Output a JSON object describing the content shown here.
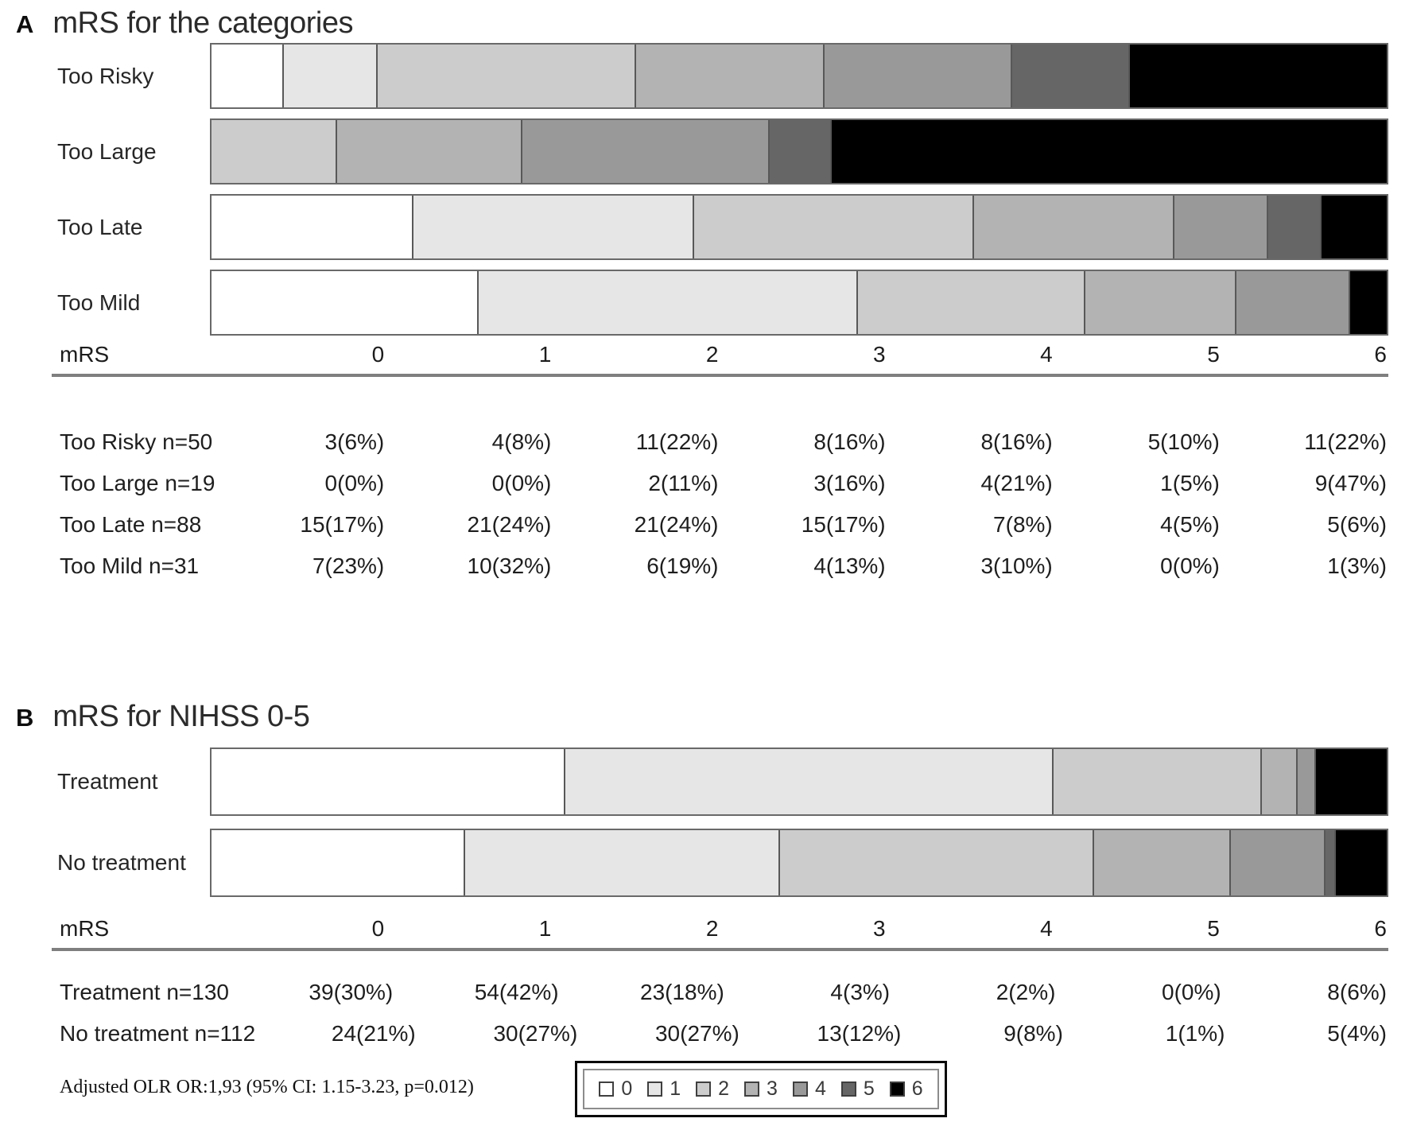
{
  "palette": [
    "#ffffff",
    "#e6e6e6",
    "#cccccc",
    "#b3b3b3",
    "#999999",
    "#666666",
    "#000000"
  ],
  "legend": {
    "labels": [
      "0",
      "1",
      "2",
      "3",
      "4",
      "5",
      "6"
    ]
  },
  "chart_data": [
    {
      "type": "stacked-bar-horizontal",
      "panel_label": "A",
      "title": "mRS for the categories",
      "xlabel": "mRS",
      "stack_labels": [
        "0",
        "1",
        "2",
        "3",
        "4",
        "5",
        "6"
      ],
      "legend_position": "bottom",
      "series": [
        {
          "name": "Too Risky",
          "table_label": "Too Risky n=50",
          "n": 50,
          "counts": [
            3,
            4,
            11,
            8,
            8,
            5,
            11
          ],
          "value_labels": [
            "3(6%)",
            "4(8%)",
            "11(22%)",
            "8(16%)",
            "8(16%)",
            "5(10%)",
            "11(22%)"
          ]
        },
        {
          "name": "Too Large",
          "table_label": "Too Large n=19",
          "n": 19,
          "counts": [
            0,
            0,
            2,
            3,
            4,
            1,
            9
          ],
          "value_labels": [
            "0(0%)",
            "0(0%)",
            "2(11%)",
            "3(16%)",
            "4(21%)",
            "1(5%)",
            "9(47%)"
          ]
        },
        {
          "name": "Too Late",
          "table_label": "Too Late n=88",
          "n": 88,
          "counts": [
            15,
            21,
            21,
            15,
            7,
            4,
            5
          ],
          "value_labels": [
            "15(17%)",
            "21(24%)",
            "21(24%)",
            "15(17%)",
            "7(8%)",
            "4(5%)",
            "5(6%)"
          ]
        },
        {
          "name": "Too Mild",
          "table_label": "Too Mild n=31",
          "n": 31,
          "counts": [
            7,
            10,
            6,
            4,
            3,
            0,
            1
          ],
          "value_labels": [
            "7(23%)",
            "10(32%)",
            "6(19%)",
            "4(13%)",
            "3(10%)",
            "0(0%)",
            "1(3%)"
          ]
        }
      ]
    },
    {
      "type": "stacked-bar-horizontal",
      "panel_label": "B",
      "title": "mRS for NIHSS 0-5",
      "xlabel": "mRS",
      "stack_labels": [
        "0",
        "1",
        "2",
        "3",
        "4",
        "5",
        "6"
      ],
      "annotation": "Adjusted OLR OR:1,93 (95% CI: 1.15-3.23, p=0.012)",
      "series": [
        {
          "name": "Treatment",
          "table_label": "Treatment n=130",
          "n": 130,
          "counts": [
            39,
            54,
            23,
            4,
            2,
            0,
            8
          ],
          "value_labels": [
            "39(30%)",
            "54(42%)",
            "23(18%)",
            "4(3%)",
            "2(2%)",
            "0(0%)",
            "8(6%)"
          ]
        },
        {
          "name": "No treatment",
          "table_label": "No treatment n=112",
          "n": 112,
          "counts": [
            24,
            30,
            30,
            13,
            9,
            1,
            5
          ],
          "value_labels": [
            "24(21%)",
            "30(27%)",
            "30(27%)",
            "13(12%)",
            "9(8%)",
            "1(1%)",
            "5(4%)"
          ]
        }
      ]
    }
  ]
}
